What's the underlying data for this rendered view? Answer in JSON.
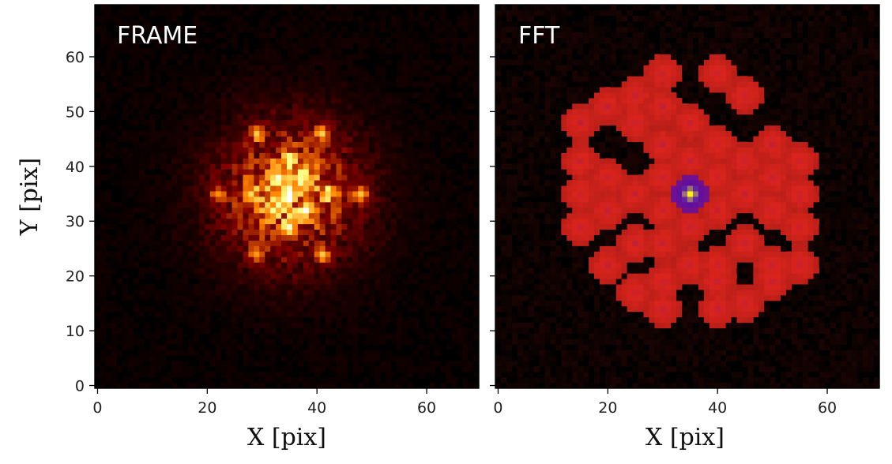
{
  "chart_data": [
    {
      "type": "heatmap",
      "title": "FRAME",
      "xlabel": "X [pix]",
      "ylabel": "Y [pix]",
      "xlim": [
        -0.5,
        69.5
      ],
      "ylim": [
        -0.5,
        69.5
      ],
      "xticks": [
        0,
        20,
        40,
        60
      ],
      "yticks": [
        0,
        10,
        20,
        30,
        40,
        50,
        60
      ],
      "colormap": "afmhot",
      "image_size": [
        70,
        70
      ],
      "center": [
        35,
        35
      ],
      "peak_pixel": [
        35,
        35
      ],
      "speckle_spots": [
        [
          22,
          35
        ],
        [
          48,
          35
        ],
        [
          29,
          46
        ],
        [
          41,
          46
        ],
        [
          29,
          24
        ],
        [
          41,
          24
        ],
        [
          32,
          38
        ],
        [
          38,
          38
        ],
        [
          32,
          32
        ],
        [
          38,
          32
        ],
        [
          35,
          41
        ],
        [
          35,
          29
        ],
        [
          28,
          35
        ],
        [
          42,
          35
        ]
      ]
    },
    {
      "type": "heatmap",
      "title": "FFT",
      "xlabel": "X [pix]",
      "ylabel": "",
      "xlim": [
        -0.5,
        69.5
      ],
      "ylim": [
        -0.5,
        69.5
      ],
      "xticks": [
        0,
        20,
        40,
        60
      ],
      "yticks": [
        0,
        10,
        20,
        30,
        40,
        50,
        60
      ],
      "colormap": "gist_stern",
      "image_size": [
        70,
        70
      ],
      "center": [
        35,
        35
      ],
      "peak_pixel": [
        35,
        35
      ],
      "spots": [
        [
          30,
          57
        ],
        [
          40,
          57
        ],
        [
          45,
          53
        ],
        [
          25,
          53
        ],
        [
          20,
          51
        ],
        [
          30,
          51
        ],
        [
          25,
          48
        ],
        [
          35,
          48
        ],
        [
          15,
          48
        ],
        [
          40,
          44
        ],
        [
          30,
          44
        ],
        [
          50,
          44
        ],
        [
          15,
          41
        ],
        [
          35,
          41
        ],
        [
          45,
          41
        ],
        [
          55,
          41
        ],
        [
          20,
          38
        ],
        [
          30,
          38
        ],
        [
          40,
          38
        ],
        [
          50,
          38
        ],
        [
          15,
          35
        ],
        [
          25,
          35
        ],
        [
          45,
          35
        ],
        [
          55,
          35
        ],
        [
          20,
          32
        ],
        [
          30,
          32
        ],
        [
          40,
          32
        ],
        [
          50,
          32
        ],
        [
          15,
          29
        ],
        [
          35,
          29
        ],
        [
          55,
          29
        ],
        [
          25,
          26
        ],
        [
          45,
          26
        ],
        [
          30,
          26
        ],
        [
          20,
          22
        ],
        [
          40,
          22
        ],
        [
          50,
          22
        ],
        [
          35,
          22
        ],
        [
          55,
          22
        ],
        [
          40,
          19
        ],
        [
          30,
          19
        ],
        [
          45,
          15
        ],
        [
          25,
          17
        ],
        [
          50,
          19
        ],
        [
          30,
          14
        ],
        [
          40,
          14
        ]
      ]
    }
  ]
}
